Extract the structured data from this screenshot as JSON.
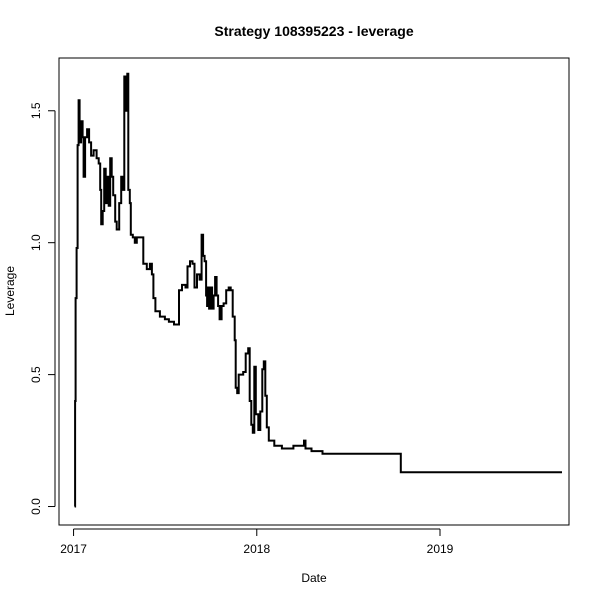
{
  "chart_data": {
    "type": "line",
    "title": "Strategy 108395223 - leverage",
    "xlabel": "Date",
    "ylabel": "Leverage",
    "x_type": "date",
    "xlim": [
      "2016-12-03",
      "2019-09-15"
    ],
    "ylim": [
      -0.07,
      1.7
    ],
    "xticks": [
      {
        "value": "2017-01-01",
        "label": "2017"
      },
      {
        "value": "2018-01-01",
        "label": "2018"
      },
      {
        "value": "2019-01-01",
        "label": "2019"
      }
    ],
    "yticks": [
      {
        "value": 0.0,
        "label": "0.0"
      },
      {
        "value": 0.5,
        "label": "0.5"
      },
      {
        "value": 1.0,
        "label": "1.0"
      },
      {
        "value": 1.5,
        "label": "1.5"
      }
    ],
    "grid": false,
    "line_style": "step",
    "series": [
      {
        "color": "#000000",
        "points": [
          [
            "2017-01-03",
            0.0
          ],
          [
            "2017-01-04",
            0.4
          ],
          [
            "2017-01-05",
            0.79
          ],
          [
            "2017-01-07",
            0.98
          ],
          [
            "2017-01-09",
            1.37
          ],
          [
            "2017-01-11",
            1.54
          ],
          [
            "2017-01-13",
            1.38
          ],
          [
            "2017-01-16",
            1.46
          ],
          [
            "2017-01-19",
            1.4
          ],
          [
            "2017-01-21",
            1.25
          ],
          [
            "2017-01-24",
            1.4
          ],
          [
            "2017-01-28",
            1.43
          ],
          [
            "2017-02-01",
            1.38
          ],
          [
            "2017-02-05",
            1.33
          ],
          [
            "2017-02-10",
            1.35
          ],
          [
            "2017-02-16",
            1.32
          ],
          [
            "2017-02-20",
            1.3
          ],
          [
            "2017-02-23",
            1.2
          ],
          [
            "2017-02-25",
            1.07
          ],
          [
            "2017-02-28",
            1.12
          ],
          [
            "2017-03-03",
            1.28
          ],
          [
            "2017-03-06",
            1.15
          ],
          [
            "2017-03-09",
            1.25
          ],
          [
            "2017-03-12",
            1.14
          ],
          [
            "2017-03-15",
            1.32
          ],
          [
            "2017-03-18",
            1.25
          ],
          [
            "2017-03-21",
            1.18
          ],
          [
            "2017-03-25",
            1.08
          ],
          [
            "2017-03-28",
            1.05
          ],
          [
            "2017-04-02",
            1.15
          ],
          [
            "2017-04-06",
            1.25
          ],
          [
            "2017-04-09",
            1.2
          ],
          [
            "2017-04-12",
            1.63
          ],
          [
            "2017-04-15",
            1.5
          ],
          [
            "2017-04-18",
            1.64
          ],
          [
            "2017-04-20",
            1.2
          ],
          [
            "2017-04-23",
            1.15
          ],
          [
            "2017-04-25",
            1.03
          ],
          [
            "2017-04-29",
            1.02
          ],
          [
            "2017-05-03",
            1.0
          ],
          [
            "2017-05-07",
            1.02
          ],
          [
            "2017-05-20",
            0.92
          ],
          [
            "2017-05-27",
            0.9
          ],
          [
            "2017-06-02",
            0.92
          ],
          [
            "2017-06-06",
            0.88
          ],
          [
            "2017-06-09",
            0.79
          ],
          [
            "2017-06-13",
            0.74
          ],
          [
            "2017-06-22",
            0.72
          ],
          [
            "2017-07-02",
            0.71
          ],
          [
            "2017-07-10",
            0.7
          ],
          [
            "2017-07-20",
            0.69
          ],
          [
            "2017-07-30",
            0.82
          ],
          [
            "2017-08-05",
            0.84
          ],
          [
            "2017-08-12",
            0.83
          ],
          [
            "2017-08-16",
            0.91
          ],
          [
            "2017-08-21",
            0.93
          ],
          [
            "2017-08-26",
            0.92
          ],
          [
            "2017-08-30",
            0.83
          ],
          [
            "2017-09-04",
            0.88
          ],
          [
            "2017-09-09",
            0.86
          ],
          [
            "2017-09-13",
            1.03
          ],
          [
            "2017-09-16",
            0.95
          ],
          [
            "2017-09-19",
            0.93
          ],
          [
            "2017-09-22",
            0.8
          ],
          [
            "2017-09-24",
            0.76
          ],
          [
            "2017-09-26",
            0.83
          ],
          [
            "2017-09-28",
            0.75
          ],
          [
            "2017-10-01",
            0.83
          ],
          [
            "2017-10-04",
            0.75
          ],
          [
            "2017-10-07",
            0.8
          ],
          [
            "2017-10-10",
            0.87
          ],
          [
            "2017-10-13",
            0.8
          ],
          [
            "2017-10-16",
            0.76
          ],
          [
            "2017-10-19",
            0.71
          ],
          [
            "2017-10-23",
            0.76
          ],
          [
            "2017-10-27",
            0.77
          ],
          [
            "2017-11-01",
            0.82
          ],
          [
            "2017-11-06",
            0.83
          ],
          [
            "2017-11-10",
            0.82
          ],
          [
            "2017-11-14",
            0.72
          ],
          [
            "2017-11-18",
            0.63
          ],
          [
            "2017-11-20",
            0.45
          ],
          [
            "2017-11-23",
            0.43
          ],
          [
            "2017-11-26",
            0.5
          ],
          [
            "2017-12-05",
            0.51
          ],
          [
            "2017-12-10",
            0.58
          ],
          [
            "2017-12-15",
            0.6
          ],
          [
            "2017-12-18",
            0.4
          ],
          [
            "2017-12-21",
            0.31
          ],
          [
            "2017-12-24",
            0.28
          ],
          [
            "2017-12-27",
            0.53
          ],
          [
            "2017-12-30",
            0.35
          ],
          [
            "2018-01-04",
            0.29
          ],
          [
            "2018-01-08",
            0.36
          ],
          [
            "2018-01-12",
            0.52
          ],
          [
            "2018-01-15",
            0.55
          ],
          [
            "2018-01-18",
            0.42
          ],
          [
            "2018-01-21",
            0.3
          ],
          [
            "2018-01-25",
            0.25
          ],
          [
            "2018-02-05",
            0.23
          ],
          [
            "2018-02-20",
            0.22
          ],
          [
            "2018-03-15",
            0.23
          ],
          [
            "2018-04-05",
            0.25
          ],
          [
            "2018-04-08",
            0.22
          ],
          [
            "2018-04-20",
            0.21
          ],
          [
            "2018-05-12",
            0.2
          ],
          [
            "2018-10-15",
            0.13
          ],
          [
            "2019-09-01",
            0.13
          ]
        ]
      }
    ]
  }
}
